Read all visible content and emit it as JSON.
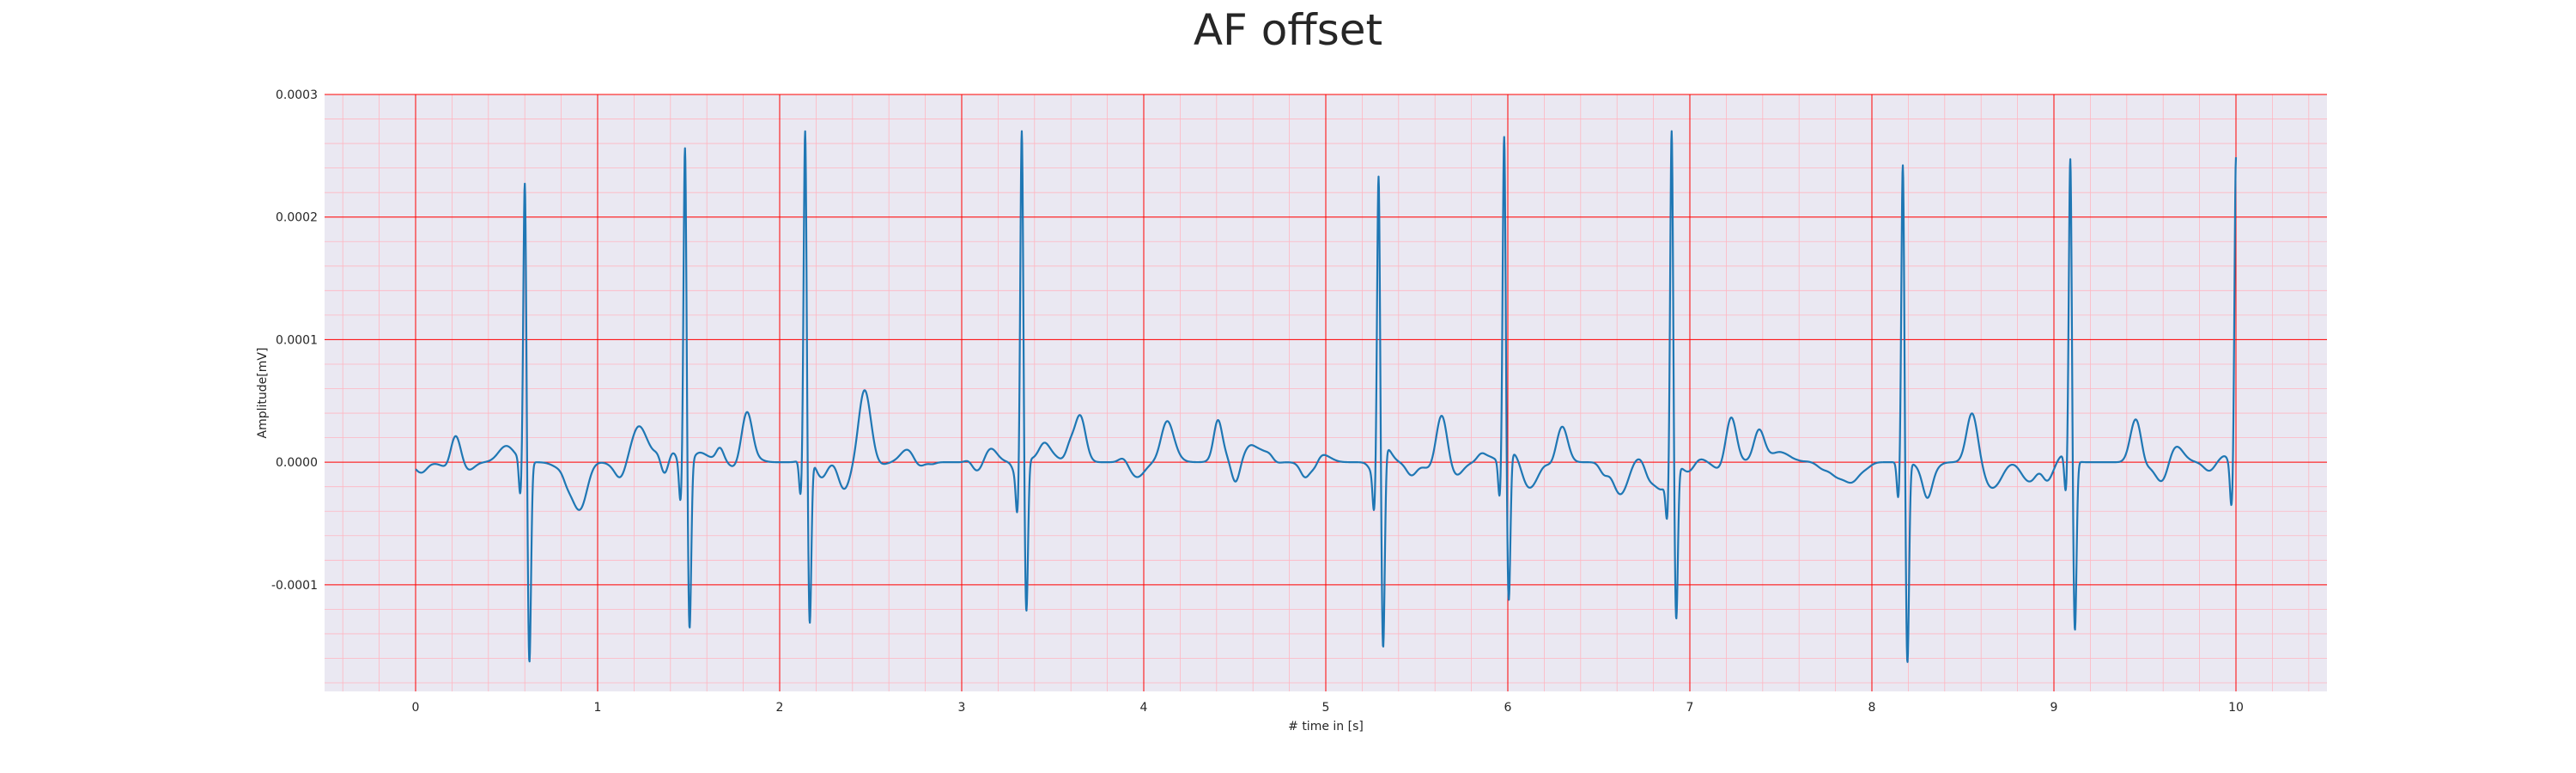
{
  "chart_data": {
    "type": "line",
    "title": "AF offset",
    "xlabel": "# time in [s]",
    "ylabel": "Amplitude[mV]",
    "xlim": [
      -0.5,
      10.5
    ],
    "ylim": [
      -0.000187,
      0.0003
    ],
    "x_ticks": [
      0,
      1,
      2,
      3,
      4,
      5,
      6,
      7,
      8,
      9,
      10
    ],
    "x_tick_labels": [
      "0",
      "1",
      "2",
      "3",
      "4",
      "5",
      "6",
      "7",
      "8",
      "9",
      "10"
    ],
    "y_ticks": [
      -0.0001,
      0.0,
      0.0001,
      0.0002,
      0.0003
    ],
    "y_tick_labels": [
      "-0.0001",
      "0.0000",
      "0.0001",
      "0.0002",
      "0.0003"
    ],
    "grid": {
      "major": true,
      "minor": true,
      "major_color": "#ff0000",
      "minor_color": "#ffb6c1"
    },
    "background_color": "#eae8f2",
    "series": [
      {
        "color": "#1f77b4",
        "beats": [
          {
            "t": 0.6,
            "r": 0.00023,
            "s": -0.000165
          },
          {
            "t": 1.48,
            "r": 0.000265,
            "s": -0.000135
          },
          {
            "t": 2.14,
            "r": 0.000268,
            "s": -0.000137
          },
          {
            "t": 3.33,
            "r": 0.000278,
            "s": -0.000125
          },
          {
            "t": 5.29,
            "r": 0.000242,
            "s": -0.00016
          },
          {
            "t": 5.98,
            "r": 0.000266,
            "s": -0.00012
          },
          {
            "t": 6.9,
            "r": 0.000283,
            "s": -0.000125
          },
          {
            "t": 8.17,
            "r": 0.000246,
            "s": -0.000165
          },
          {
            "t": 9.09,
            "r": 0.000247,
            "s": -0.00014
          },
          {
            "t": 10.0,
            "r": 0.000258,
            "s": -5e-05
          }
        ],
        "t_waves": [
          {
            "t": 0.22,
            "a": 2.8e-05
          },
          {
            "t": 1.82,
            "a": 4.2e-05
          },
          {
            "t": 2.45,
            "a": 5.6e-05
          },
          {
            "t": 3.65,
            "a": 3.8e-05
          },
          {
            "t": 5.64,
            "a": 3.6e-05
          },
          {
            "t": 6.3,
            "a": 3.5e-05
          },
          {
            "t": 7.23,
            "a": 3.6e-05
          },
          {
            "t": 8.55,
            "a": 4e-05
          },
          {
            "t": 9.45,
            "a": 4e-05
          }
        ]
      }
    ]
  }
}
